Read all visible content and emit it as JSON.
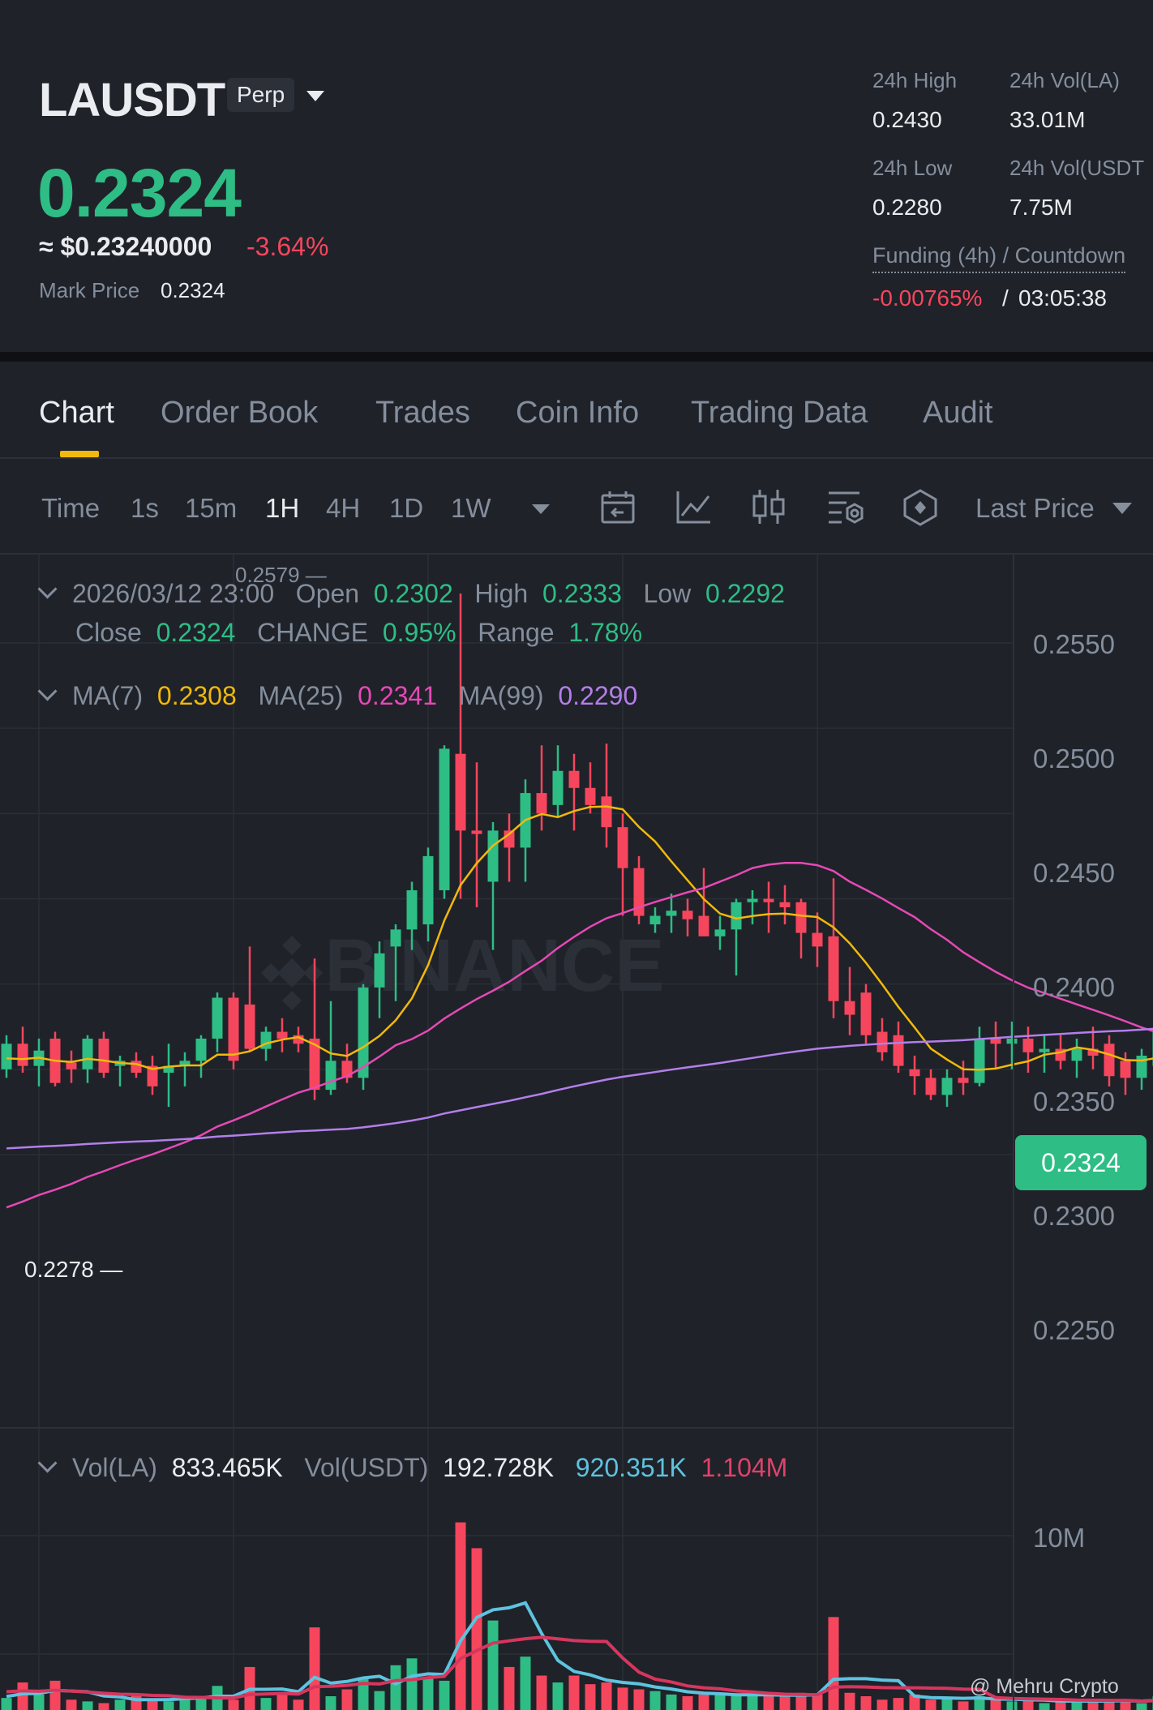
{
  "header": {
    "symbol": "LAUSDT",
    "contract_type": "Perp",
    "last_price": "0.2324",
    "usd_price": "≈ $0.23240000",
    "change_pct": "-3.64%",
    "mark_price_label": "Mark Price",
    "mark_price": "0.2324",
    "stats": {
      "high_label": "24h High",
      "high": "0.2430",
      "vol_la_label": "24h Vol(LA)",
      "vol_la": "33.01M",
      "low_label": "24h Low",
      "low": "0.2280",
      "vol_usdt_label": "24h Vol(USDT",
      "vol_usdt": "7.75M"
    },
    "funding_label": "Funding (4h) / Countdown",
    "funding_rate": "-0.00765%",
    "funding_slash": "/",
    "countdown": "03:05:38"
  },
  "tabs": [
    "Chart",
    "Order Book",
    "Trades",
    "Coin Info",
    "Trading Data",
    "Audit"
  ],
  "toolbar": {
    "time_label": "Time",
    "intervals": [
      "1s",
      "15m",
      "1H",
      "4H",
      "1D",
      "1W"
    ],
    "active_interval": "1H",
    "price_type": "Last Price",
    "icons": [
      "calendar-icon",
      "indicator-icon",
      "candle-style-icon",
      "chart-settings-icon",
      "depth-icon"
    ]
  },
  "ohlc": {
    "datetime": "2026/03/12 23:00",
    "open_label": "Open",
    "open": "0.2302",
    "high_label": "High",
    "high": "0.2333",
    "low_label": "Low",
    "low": "0.2292",
    "close_label": "Close",
    "close": "0.2324",
    "change_label": "CHANGE",
    "change": "0.95%",
    "range_label": "Range",
    "range": "1.78%"
  },
  "ma": {
    "ma7_label": "MA(7)",
    "ma7": "0.2308",
    "ma25_label": "MA(25)",
    "ma25": "0.2341",
    "ma99_label": "MA(99)",
    "ma99": "0.2290"
  },
  "volume": {
    "label": "Vol(LA)",
    "vol_la": "833.465K",
    "usdt_label": "Vol(USDT)",
    "vol_usdt": "192.728K",
    "ma_short": "920.351K",
    "ma_long": "1.104M",
    "axis_label": "10M"
  },
  "price_axis": [
    "0.2550",
    "0.2500",
    "0.2450",
    "0.2400",
    "0.2350",
    "0.2300",
    "0.2250"
  ],
  "current_price_tag": "0.2324",
  "markers": {
    "max": "0.2579",
    "min": "0.2278"
  },
  "watermark_text": "BINANCE",
  "credit": "@ Mehru Crypto",
  "colors": {
    "up": "#2ebd85",
    "down": "#f6465d",
    "ma7": "#f0b90b",
    "ma25": "#e649b5",
    "ma99": "#b37feb",
    "accent": "#f0b90b"
  },
  "chart_data": {
    "type": "candlestick",
    "interval": "1H",
    "ylim": [
      0.2215,
      0.2587
    ],
    "candles": [
      {
        "o": 0.23,
        "h": 0.232,
        "l": 0.2295,
        "c": 0.2315
      },
      {
        "o": 0.2315,
        "h": 0.2325,
        "l": 0.2298,
        "c": 0.2302
      },
      {
        "o": 0.2302,
        "h": 0.2318,
        "l": 0.229,
        "c": 0.2311
      },
      {
        "o": 0.2318,
        "h": 0.2322,
        "l": 0.229,
        "c": 0.2292
      },
      {
        "o": 0.2304,
        "h": 0.2311,
        "l": 0.2292,
        "c": 0.23
      },
      {
        "o": 0.23,
        "h": 0.232,
        "l": 0.2292,
        "c": 0.2318
      },
      {
        "o": 0.2318,
        "h": 0.2322,
        "l": 0.2295,
        "c": 0.2298
      },
      {
        "o": 0.2302,
        "h": 0.2308,
        "l": 0.229,
        "c": 0.2305
      },
      {
        "o": 0.2305,
        "h": 0.231,
        "l": 0.2295,
        "c": 0.2298
      },
      {
        "o": 0.2302,
        "h": 0.2308,
        "l": 0.2285,
        "c": 0.229
      },
      {
        "o": 0.2298,
        "h": 0.2315,
        "l": 0.2278,
        "c": 0.2302
      },
      {
        "o": 0.2302,
        "h": 0.231,
        "l": 0.229,
        "c": 0.2305
      },
      {
        "o": 0.2305,
        "h": 0.232,
        "l": 0.2295,
        "c": 0.2318
      },
      {
        "o": 0.2318,
        "h": 0.2345,
        "l": 0.231,
        "c": 0.2342
      },
      {
        "o": 0.2342,
        "h": 0.2345,
        "l": 0.23,
        "c": 0.2305
      },
      {
        "o": 0.2338,
        "h": 0.2372,
        "l": 0.231,
        "c": 0.2312
      },
      {
        "o": 0.2312,
        "h": 0.2325,
        "l": 0.2305,
        "c": 0.2322
      },
      {
        "o": 0.2322,
        "h": 0.233,
        "l": 0.231,
        "c": 0.2318
      },
      {
        "o": 0.232,
        "h": 0.2325,
        "l": 0.231,
        "c": 0.2315
      },
      {
        "o": 0.2318,
        "h": 0.2365,
        "l": 0.2282,
        "c": 0.2288
      },
      {
        "o": 0.2288,
        "h": 0.234,
        "l": 0.2285,
        "c": 0.2305
      },
      {
        "o": 0.2305,
        "h": 0.2315,
        "l": 0.2292,
        "c": 0.2295
      },
      {
        "o": 0.2295,
        "h": 0.235,
        "l": 0.2288,
        "c": 0.2348
      },
      {
        "o": 0.2348,
        "h": 0.2375,
        "l": 0.233,
        "c": 0.2368
      },
      {
        "o": 0.2372,
        "h": 0.2385,
        "l": 0.234,
        "c": 0.2382
      },
      {
        "o": 0.2382,
        "h": 0.241,
        "l": 0.237,
        "c": 0.2405
      },
      {
        "o": 0.2385,
        "h": 0.243,
        "l": 0.2375,
        "c": 0.2425
      },
      {
        "o": 0.2405,
        "h": 0.249,
        "l": 0.24,
        "c": 0.2488
      },
      {
        "o": 0.2485,
        "h": 0.2579,
        "l": 0.24,
        "c": 0.244
      },
      {
        "o": 0.244,
        "h": 0.248,
        "l": 0.2395,
        "c": 0.2438
      },
      {
        "o": 0.241,
        "h": 0.2445,
        "l": 0.237,
        "c": 0.244
      },
      {
        "o": 0.244,
        "h": 0.245,
        "l": 0.241,
        "c": 0.243
      },
      {
        "o": 0.243,
        "h": 0.247,
        "l": 0.241,
        "c": 0.2462
      },
      {
        "o": 0.2462,
        "h": 0.249,
        "l": 0.244,
        "c": 0.245
      },
      {
        "o": 0.2455,
        "h": 0.249,
        "l": 0.2448,
        "c": 0.2475
      },
      {
        "o": 0.2475,
        "h": 0.2485,
        "l": 0.244,
        "c": 0.2465
      },
      {
        "o": 0.2465,
        "h": 0.248,
        "l": 0.245,
        "c": 0.2455
      },
      {
        "o": 0.246,
        "h": 0.2491,
        "l": 0.243,
        "c": 0.2442
      },
      {
        "o": 0.2442,
        "h": 0.245,
        "l": 0.239,
        "c": 0.2418
      },
      {
        "o": 0.2418,
        "h": 0.2425,
        "l": 0.2385,
        "c": 0.239
      },
      {
        "o": 0.2385,
        "h": 0.2395,
        "l": 0.238,
        "c": 0.239
      },
      {
        "o": 0.239,
        "h": 0.2403,
        "l": 0.238,
        "c": 0.2393
      },
      {
        "o": 0.2393,
        "h": 0.24,
        "l": 0.2378,
        "c": 0.2388
      },
      {
        "o": 0.239,
        "h": 0.2418,
        "l": 0.2378,
        "c": 0.2378
      },
      {
        "o": 0.2378,
        "h": 0.239,
        "l": 0.237,
        "c": 0.2382
      },
      {
        "o": 0.2382,
        "h": 0.24,
        "l": 0.2355,
        "c": 0.2398
      },
      {
        "o": 0.2398,
        "h": 0.2405,
        "l": 0.2385,
        "c": 0.24
      },
      {
        "o": 0.24,
        "h": 0.241,
        "l": 0.238,
        "c": 0.2398
      },
      {
        "o": 0.2398,
        "h": 0.2408,
        "l": 0.2385,
        "c": 0.2395
      },
      {
        "o": 0.2398,
        "h": 0.24,
        "l": 0.2365,
        "c": 0.238
      },
      {
        "o": 0.238,
        "h": 0.2392,
        "l": 0.236,
        "c": 0.2372
      },
      {
        "o": 0.2378,
        "h": 0.2412,
        "l": 0.233,
        "c": 0.234
      },
      {
        "o": 0.234,
        "h": 0.236,
        "l": 0.232,
        "c": 0.2332
      },
      {
        "o": 0.2345,
        "h": 0.235,
        "l": 0.2315,
        "c": 0.232
      },
      {
        "o": 0.2322,
        "h": 0.233,
        "l": 0.2305,
        "c": 0.231
      },
      {
        "o": 0.232,
        "h": 0.2328,
        "l": 0.2298,
        "c": 0.2302
      },
      {
        "o": 0.23,
        "h": 0.2308,
        "l": 0.2285,
        "c": 0.2296
      },
      {
        "o": 0.2295,
        "h": 0.23,
        "l": 0.2282,
        "c": 0.2285
      },
      {
        "o": 0.2285,
        "h": 0.23,
        "l": 0.2278,
        "c": 0.2295
      },
      {
        "o": 0.2295,
        "h": 0.2305,
        "l": 0.2285,
        "c": 0.2292
      },
      {
        "o": 0.2292,
        "h": 0.2325,
        "l": 0.229,
        "c": 0.2318
      },
      {
        "o": 0.2318,
        "h": 0.2328,
        "l": 0.23,
        "c": 0.2315
      },
      {
        "o": 0.2315,
        "h": 0.2328,
        "l": 0.23,
        "c": 0.2318
      },
      {
        "o": 0.2318,
        "h": 0.2325,
        "l": 0.2298,
        "c": 0.231
      },
      {
        "o": 0.231,
        "h": 0.232,
        "l": 0.2298,
        "c": 0.2312
      },
      {
        "o": 0.2312,
        "h": 0.232,
        "l": 0.23,
        "c": 0.2305
      },
      {
        "o": 0.2305,
        "h": 0.2318,
        "l": 0.2295,
        "c": 0.2312
      },
      {
        "o": 0.2312,
        "h": 0.2325,
        "l": 0.23,
        "c": 0.2308
      },
      {
        "o": 0.2315,
        "h": 0.232,
        "l": 0.229,
        "c": 0.2296
      },
      {
        "o": 0.2305,
        "h": 0.231,
        "l": 0.2285,
        "c": 0.2295
      },
      {
        "o": 0.2295,
        "h": 0.2312,
        "l": 0.2288,
        "c": 0.2308
      },
      {
        "o": 0.2302,
        "h": 0.2333,
        "l": 0.2292,
        "c": 0.2324
      }
    ],
    "volume_bars": [
      0.7,
      1.6,
      0.9,
      1.7,
      0.6,
      0.5,
      0.4,
      0.6,
      0.9,
      0.6,
      0.5,
      0.7,
      0.8,
      1.4,
      0.6,
      2.5,
      0.7,
      0.9,
      0.6,
      4.8,
      0.8,
      1.2,
      1.9,
      1.1,
      2.6,
      3.0,
      1.9,
      1.7,
      10.9,
      9.4,
      5.2,
      2.5,
      3.1,
      2.0,
      1.6,
      2.0,
      1.5,
      1.6,
      1.3,
      1.2,
      1.1,
      0.9,
      0.8,
      0.9,
      1.0,
      0.8,
      0.9,
      0.8,
      0.8,
      1.0,
      0.9,
      5.4,
      1.0,
      0.8,
      0.6,
      0.7,
      0.9,
      0.6,
      0.7,
      0.5,
      0.8,
      0.6,
      0.5,
      0.6,
      0.4,
      0.5,
      0.6,
      0.5,
      0.6,
      0.5,
      0.4,
      0.8
    ]
  }
}
